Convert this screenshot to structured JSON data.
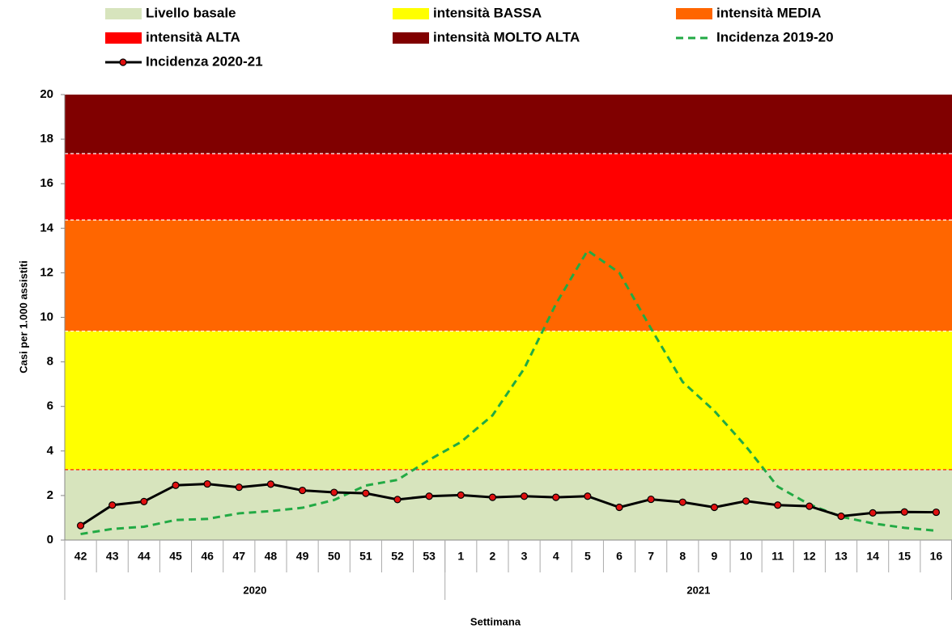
{
  "chart_data": {
    "type": "line",
    "y_label": "Casi per 1.000 assistiti",
    "x_label": "Settimana",
    "ylim": [
      0,
      20
    ],
    "yticks": [
      0,
      2,
      4,
      6,
      8,
      10,
      12,
      14,
      16,
      18,
      20
    ],
    "groups": [
      {
        "label": "2020",
        "categories": [
          "42",
          "43",
          "44",
          "45",
          "46",
          "47",
          "48",
          "49",
          "50",
          "51",
          "52",
          "53"
        ]
      },
      {
        "label": "2021",
        "categories": [
          "1",
          "2",
          "3",
          "4",
          "5",
          "6",
          "7",
          "8",
          "9",
          "10",
          "11",
          "12",
          "13",
          "14",
          "15",
          "16"
        ]
      }
    ],
    "bands": [
      {
        "name": "Livello basale",
        "color": "#d7e4bd",
        "from": 0,
        "to": 3.16
      },
      {
        "name": "intensità BASSA",
        "color": "#ffff00",
        "from": 3.16,
        "to": 9.38
      },
      {
        "name": "intensità MEDIA",
        "color": "#ff6600",
        "from": 9.38,
        "to": 14.37
      },
      {
        "name": "intensità ALTA",
        "color": "#ff0000",
        "from": 14.37,
        "to": 17.35
      },
      {
        "name": "intensità MOLTO ALTA",
        "color": "#800000",
        "from": 17.35,
        "to": 20
      }
    ],
    "series": [
      {
        "name": "Incidenza 2019-20",
        "color": "#22aa44",
        "dashed": true,
        "markers": false,
        "values": [
          0.27,
          0.5,
          0.6,
          0.9,
          0.95,
          1.2,
          1.3,
          1.45,
          1.8,
          2.45,
          2.7,
          3.6,
          4.4,
          5.6,
          7.7,
          10.6,
          13.0,
          12.0,
          9.5,
          7.1,
          5.8,
          4.2,
          2.4,
          1.6,
          1.05,
          0.75,
          0.55,
          0.42
        ]
      },
      {
        "name": "Incidenza 2020-21",
        "color": "#000000",
        "dashed": false,
        "markers": true,
        "marker_color": "#e01010",
        "values": [
          0.65,
          1.57,
          1.73,
          2.46,
          2.52,
          2.37,
          2.51,
          2.23,
          2.14,
          2.1,
          1.82,
          1.97,
          2.02,
          1.92,
          1.97,
          1.92,
          1.97,
          1.47,
          1.83,
          1.7,
          1.47,
          1.75,
          1.57,
          1.52,
          1.07,
          1.22,
          1.26,
          1.25
        ]
      }
    ]
  }
}
